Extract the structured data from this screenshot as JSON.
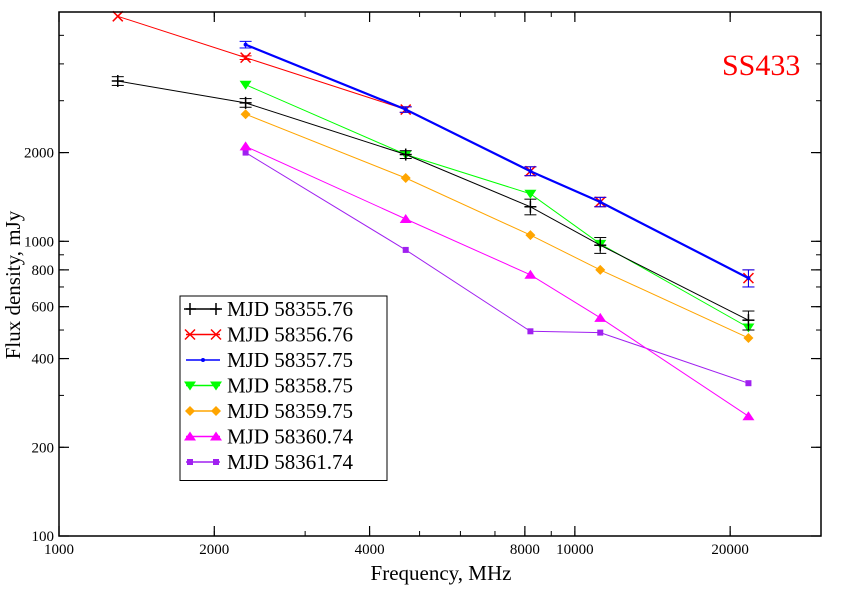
{
  "chart_data": {
    "type": "line",
    "xscale": "log",
    "yscale": "log",
    "xlabel": "Frequency, MHz",
    "ylabel": "Flux density, mJy",
    "xlim": [
      1000,
      30000
    ],
    "ylim": [
      100,
      6000
    ],
    "xticks": [
      {
        "value": 1000,
        "label": "1000"
      },
      {
        "value": 2000,
        "label": "2000"
      },
      {
        "value": 4000,
        "label": "4000"
      },
      {
        "value": 8000,
        "label": "8000"
      },
      {
        "value": 10000,
        "label": "10000"
      },
      {
        "value": 20000,
        "label": "20000"
      }
    ],
    "yticks": [
      {
        "value": 100,
        "label": "100"
      },
      {
        "value": 200,
        "label": "200"
      },
      {
        "value": 400,
        "label": "400"
      },
      {
        "value": 600,
        "label": "600"
      },
      {
        "value": 800,
        "label": "800"
      },
      {
        "value": 1000,
        "label": "1000"
      },
      {
        "value": 2000,
        "label": "2000"
      }
    ],
    "annotation": {
      "text": "SS433",
      "color": "#ff0000"
    },
    "legend_position": "bottom-left",
    "series": [
      {
        "name": "MJD 58355.76",
        "color": "#000000",
        "marker": "plus",
        "x": [
          1300,
          2300,
          4700,
          8200,
          11200,
          21700
        ],
        "y": [
          3500,
          2950,
          1970,
          1310,
          970,
          540
        ],
        "err": [
          120,
          100,
          60,
          80,
          60,
          40
        ]
      },
      {
        "name": "MJD 58356.76",
        "color": "#ff0000",
        "marker": "x",
        "x": [
          1300,
          2300,
          4700,
          8200,
          11200,
          21700
        ],
        "y": [
          5800,
          4200,
          2800,
          1730,
          1360,
          750
        ],
        "err": [
          0,
          60,
          60,
          60,
          50,
          50
        ]
      },
      {
        "name": "MJD 58357.75",
        "color": "#0000ff",
        "marker": "dot",
        "x": [
          2300,
          4700,
          8200,
          11200,
          21700
        ],
        "y": [
          4650,
          2800,
          1730,
          1360,
          750
        ],
        "err": [
          120,
          60,
          60,
          50,
          50
        ]
      },
      {
        "name": "MJD 58358.75",
        "color": "#00ff00",
        "marker": "triangle-down",
        "x": [
          2300,
          4700,
          8200,
          11200,
          21700
        ],
        "y": [
          3400,
          1970,
          1450,
          980,
          510
        ],
        "err": [
          0,
          0,
          0,
          0,
          0
        ]
      },
      {
        "name": "MJD 58359.75",
        "color": "#ffa500",
        "marker": "diamond",
        "x": [
          2300,
          4700,
          8200,
          11200,
          21700
        ],
        "y": [
          2700,
          1640,
          1050,
          800,
          470
        ],
        "err": [
          0,
          0,
          0,
          0,
          0
        ]
      },
      {
        "name": "MJD 58360.74",
        "color": "#ff00ff",
        "marker": "triangle-up",
        "x": [
          2300,
          4700,
          8200,
          11200,
          21700
        ],
        "y": [
          2100,
          1190,
          770,
          550,
          255
        ],
        "err": [
          0,
          0,
          0,
          0,
          0
        ]
      },
      {
        "name": "MJD 58361.74",
        "color": "#a020f0",
        "marker": "square",
        "x": [
          2300,
          4700,
          8200,
          11200,
          21700
        ],
        "y": [
          2000,
          935,
          495,
          490,
          330
        ],
        "err": [
          0,
          0,
          0,
          0,
          0
        ]
      }
    ]
  }
}
